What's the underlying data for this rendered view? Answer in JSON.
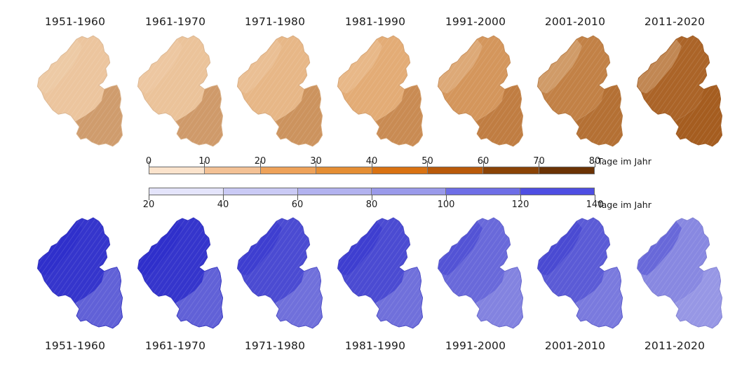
{
  "maps": {
    "decades": [
      "1951-1960",
      "1961-1970",
      "1971-1980",
      "1981-1990",
      "1991-2000",
      "2001-2010",
      "2011-2020"
    ],
    "top_row": {
      "color_base": "#e2a86f",
      "color_dark": "#9a4f12",
      "color_light": "#f0d2b2",
      "relative_intensity": [
        0.15,
        0.18,
        0.32,
        0.45,
        0.6,
        0.72,
        0.88
      ]
    },
    "bottom_row": {
      "color_base": "#5b5bd6",
      "color_dark": "#2424c8",
      "color_light": "#b4b4ec",
      "relative_intensity": [
        0.85,
        0.85,
        0.65,
        0.65,
        0.42,
        0.5,
        0.25
      ]
    }
  },
  "legend_top": {
    "ticks": [
      "0",
      "10",
      "20",
      "30",
      "40",
      "50",
      "60",
      "70",
      "80"
    ],
    "unit": "Tage im Jahr",
    "colors": [
      "#fbe3cc",
      "#f3c195",
      "#eea25a",
      "#e58e34",
      "#d97212",
      "#b95a0a",
      "#8a4306",
      "#6b3305"
    ]
  },
  "legend_bottom": {
    "ticks": [
      "20",
      "40",
      "60",
      "80",
      "100",
      "120",
      "140"
    ],
    "unit": "Tage im Jahr",
    "colors": [
      "#e4e4fb",
      "#cacaf5",
      "#b2b2ef",
      "#9a9aea",
      "#6e6ee6",
      "#4e4ee2"
    ]
  }
}
